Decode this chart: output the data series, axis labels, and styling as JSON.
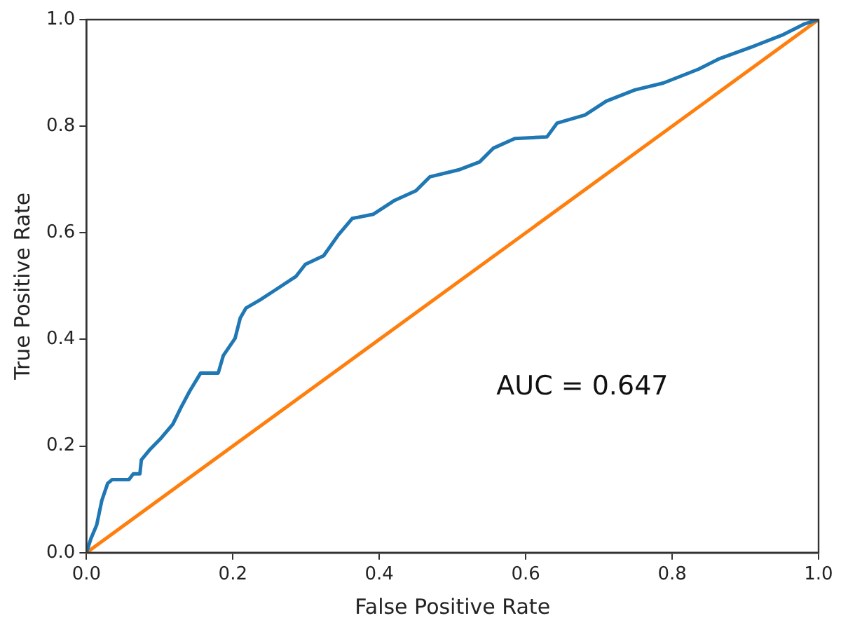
{
  "chart_data": {
    "type": "line",
    "xlabel": "False Positive Rate",
    "ylabel": "True Positive Rate",
    "annotations": [
      "AUC = 0.647"
    ],
    "xlim": [
      0,
      1
    ],
    "ylim": [
      0,
      1
    ],
    "xticks": [
      {
        "value": 0,
        "label": "0.0"
      },
      {
        "value": 0.2,
        "label": "0.2"
      },
      {
        "value": 0.4,
        "label": "0.4"
      },
      {
        "value": 0.6,
        "label": "0.6"
      },
      {
        "value": 0.8,
        "label": "0.8"
      },
      {
        "value": 1,
        "label": "1.0"
      }
    ],
    "yticks": [
      {
        "value": 0,
        "label": "0.0"
      },
      {
        "value": 0.2,
        "label": "0.2"
      },
      {
        "value": 0.4,
        "label": "0.4"
      },
      {
        "value": 0.6,
        "label": "0.6"
      },
      {
        "value": 0.8,
        "label": "0.8"
      },
      {
        "value": 1,
        "label": "1.0"
      }
    ],
    "grid": false,
    "legend": false,
    "marker": "none",
    "line_style": "solid",
    "series": [
      {
        "color": "#1f77b4",
        "x": [
          0,
          0.006,
          0.014,
          0.021,
          0.029,
          0.035,
          0.058,
          0.064,
          0.073,
          0.075,
          0.087,
          0.102,
          0.118,
          0.129,
          0.141,
          0.156,
          0.18,
          0.187,
          0.203,
          0.21,
          0.218,
          0.237,
          0.257,
          0.286,
          0.299,
          0.324,
          0.344,
          0.363,
          0.392,
          0.421,
          0.45,
          0.469,
          0.508,
          0.537,
          0.556,
          0.585,
          0.629,
          0.643,
          0.681,
          0.71,
          0.749,
          0.788,
          0.836,
          0.865,
          0.913,
          0.952,
          0.981,
          1
        ],
        "values": [
          0,
          0.026,
          0.052,
          0.098,
          0.13,
          0.137,
          0.137,
          0.148,
          0.148,
          0.174,
          0.194,
          0.215,
          0.241,
          0.272,
          0.303,
          0.337,
          0.337,
          0.37,
          0.402,
          0.44,
          0.459,
          0.474,
          0.492,
          0.518,
          0.541,
          0.557,
          0.596,
          0.627,
          0.635,
          0.661,
          0.679,
          0.705,
          0.718,
          0.733,
          0.759,
          0.777,
          0.78,
          0.806,
          0.821,
          0.847,
          0.868,
          0.881,
          0.907,
          0.927,
          0.951,
          0.972,
          0.992,
          1
        ]
      },
      {
        "color": "#ff7f0e",
        "x": [
          0,
          1
        ],
        "values": [
          0,
          1
        ]
      }
    ]
  }
}
